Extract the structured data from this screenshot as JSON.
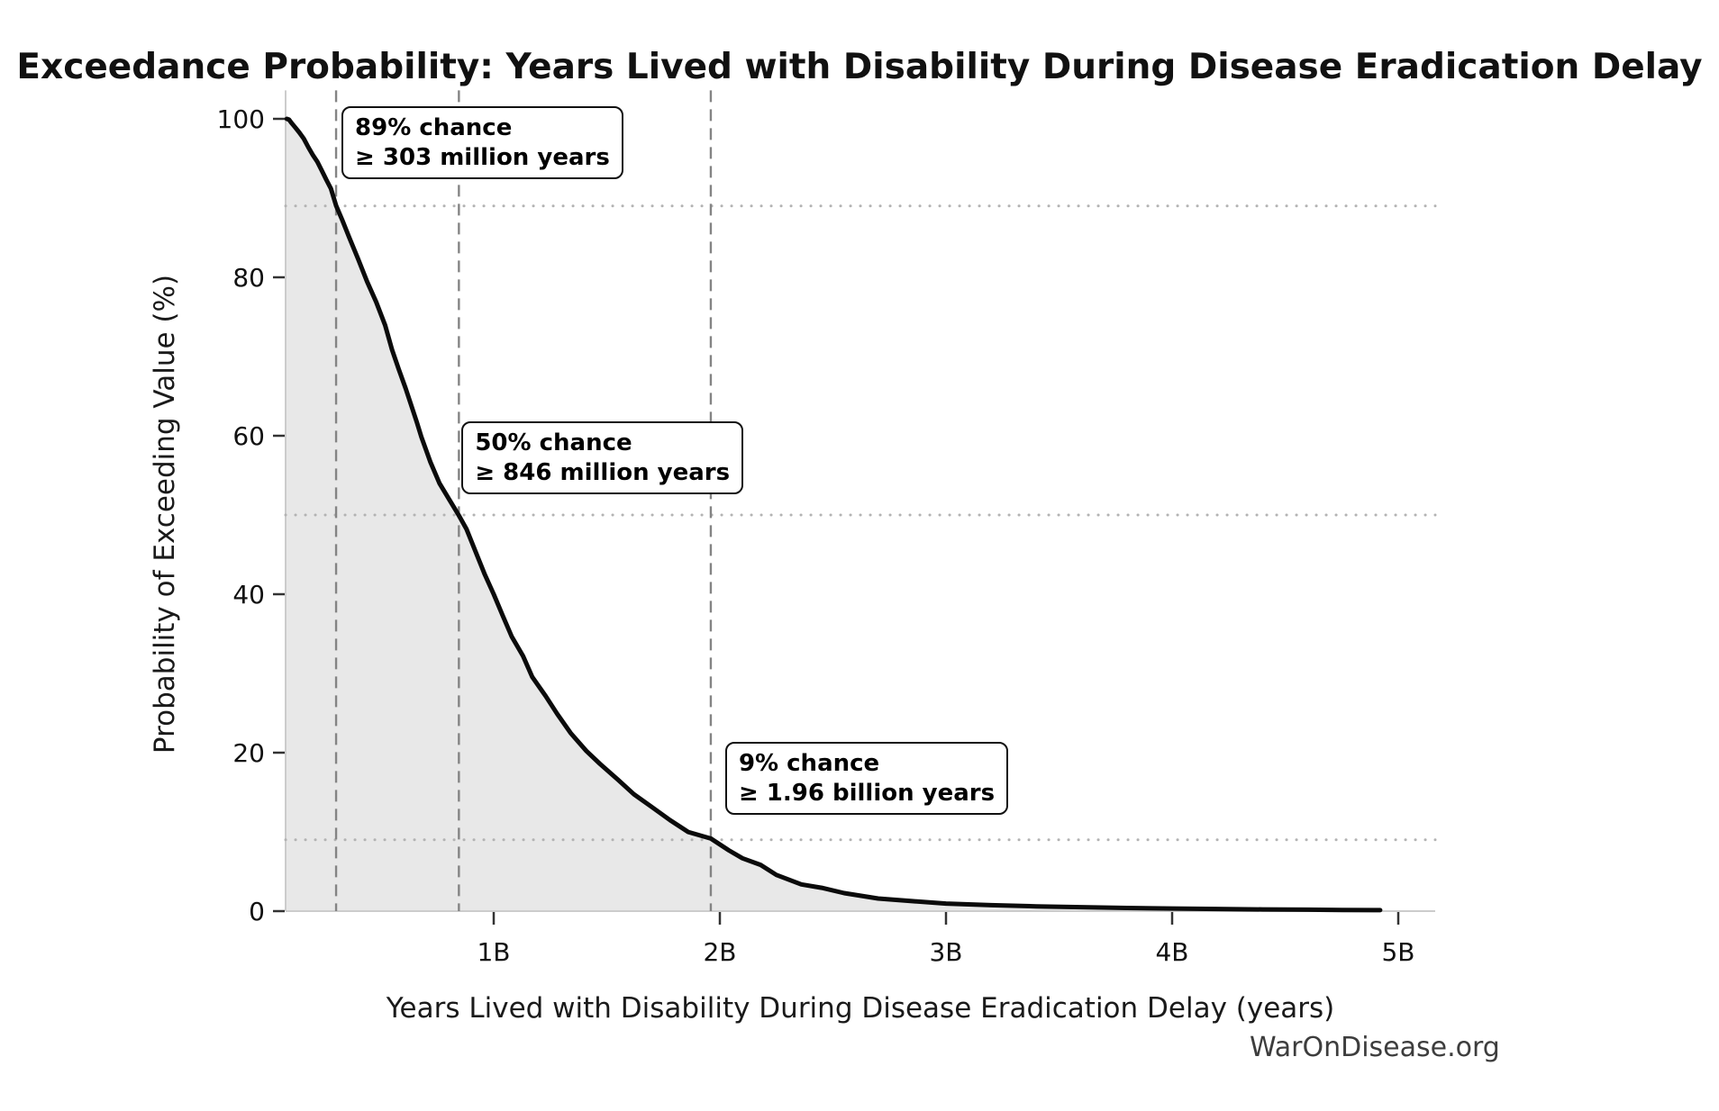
{
  "title": "Exceedance Probability: Years Lived with Disability During Disease Eradication Delay",
  "attribution": "WarOnDisease.org",
  "chart_data": {
    "type": "area",
    "title": "Exceedance Probability: Years Lived with Disability During Disease Eradication Delay",
    "xlabel": "Years Lived with Disability During Disease Eradication Delay (years)",
    "ylabel": "Probability of Exceeding Value (%)",
    "x_unit": "billions of years",
    "xlim": [
      0.08,
      5.16
    ],
    "ylim": [
      0,
      103.6
    ],
    "grid": "dotted horizontal reference lines at annotated probabilities; dashed vertical reference lines at annotated values",
    "legend_position": "none",
    "x_ticks": [
      {
        "value": 1,
        "label": "1B"
      },
      {
        "value": 2,
        "label": "2B"
      },
      {
        "value": 3,
        "label": "3B"
      },
      {
        "value": 4,
        "label": "4B"
      },
      {
        "value": 5,
        "label": "5B"
      }
    ],
    "y_ticks": [
      {
        "value": 100,
        "label": "100"
      },
      {
        "value": 80,
        "label": "80"
      },
      {
        "value": 60,
        "label": "60"
      },
      {
        "value": 40,
        "label": "40"
      },
      {
        "value": 20,
        "label": "20"
      },
      {
        "value": 0,
        "label": "0"
      }
    ],
    "annotations": [
      {
        "line1": "89% chance",
        "line2": "≥ 303 million years",
        "x": 0.303,
        "probability": 89
      },
      {
        "line1": "50% chance",
        "line2": "≥ 846 million years",
        "x": 0.846,
        "probability": 50
      },
      {
        "line1": "9% chance",
        "line2": "≥ 1.96 billion years",
        "x": 1.96,
        "probability": 9
      }
    ],
    "curve": [
      [
        0.085,
        100
      ],
      [
        0.095,
        99.9
      ],
      [
        0.105,
        99.5
      ],
      [
        0.12,
        99.0
      ],
      [
        0.14,
        98.3
      ],
      [
        0.16,
        97.3
      ],
      [
        0.18,
        96.4
      ],
      [
        0.2,
        95.6
      ],
      [
        0.22,
        94.6
      ],
      [
        0.24,
        93.5
      ],
      [
        0.26,
        92.3
      ],
      [
        0.28,
        91.0
      ],
      [
        0.303,
        89.0
      ],
      [
        0.33,
        87.4
      ],
      [
        0.36,
        85.1
      ],
      [
        0.4,
        82.4
      ],
      [
        0.44,
        79.5
      ],
      [
        0.48,
        76.7
      ],
      [
        0.52,
        73.9
      ],
      [
        0.55,
        71.0
      ],
      [
        0.58,
        68.4
      ],
      [
        0.61,
        66.1
      ],
      [
        0.64,
        63.5
      ],
      [
        0.66,
        61.5
      ],
      [
        0.68,
        59.8
      ],
      [
        0.72,
        56.8
      ],
      [
        0.76,
        54.0
      ],
      [
        0.8,
        52.2
      ],
      [
        0.846,
        50.0
      ],
      [
        0.88,
        48.0
      ],
      [
        0.92,
        45.3
      ],
      [
        0.96,
        42.6
      ],
      [
        1.0,
        40.0
      ],
      [
        1.04,
        37.4
      ],
      [
        1.08,
        34.7
      ],
      [
        1.13,
        32.0
      ],
      [
        1.17,
        29.5
      ],
      [
        1.23,
        27.2
      ],
      [
        1.28,
        24.9
      ],
      [
        1.34,
        22.6
      ],
      [
        1.41,
        20.3
      ],
      [
        1.47,
        18.4
      ],
      [
        1.55,
        16.5
      ],
      [
        1.62,
        14.8
      ],
      [
        1.7,
        13.1
      ],
      [
        1.78,
        11.6
      ],
      [
        1.86,
        10.1
      ],
      [
        1.96,
        9.0
      ],
      [
        2.04,
        7.6
      ],
      [
        2.1,
        6.7
      ],
      [
        2.18,
        5.8
      ],
      [
        2.25,
        4.7
      ],
      [
        2.36,
        3.5
      ],
      [
        2.45,
        2.8
      ],
      [
        2.55,
        2.2
      ],
      [
        2.7,
        1.6
      ],
      [
        2.85,
        1.2
      ],
      [
        3.0,
        0.95
      ],
      [
        3.2,
        0.75
      ],
      [
        3.4,
        0.6
      ],
      [
        3.6,
        0.5
      ],
      [
        3.8,
        0.4
      ],
      [
        4.0,
        0.33
      ],
      [
        4.2,
        0.27
      ],
      [
        4.4,
        0.22
      ],
      [
        4.6,
        0.18
      ],
      [
        4.75,
        0.15
      ],
      [
        4.92,
        0.12
      ]
    ],
    "colors": {
      "curve": "#0b0b0b",
      "fill": "#e8e8e8",
      "dashed_line": "#848484",
      "dotted_line": "#b3b3b3",
      "spine": "#cccccc",
      "tick": "#333333",
      "tick_label": "#111111",
      "title": "#111111",
      "attribution": "#3d3d3d"
    }
  }
}
